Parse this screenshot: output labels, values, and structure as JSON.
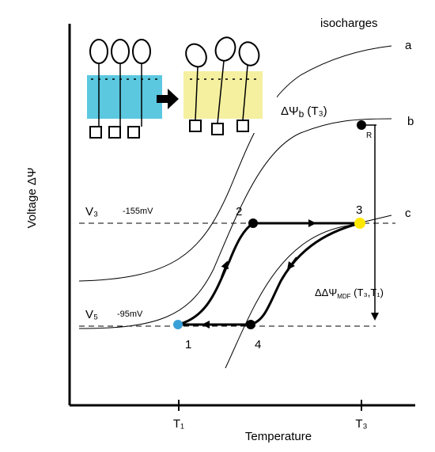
{
  "legend_title": "isocharges",
  "curves": {
    "a": "a",
    "b": "b",
    "c": "c"
  },
  "axes": {
    "y_label": "Voltage ΔΨ",
    "x_label": "Temperature",
    "x_ticks": [
      "T₁",
      "T₃"
    ]
  },
  "levels": [
    {
      "name": "V₃",
      "value": "-155mV"
    },
    {
      "name": "V₅",
      "value": "-95mV"
    }
  ],
  "points": [
    "1",
    "2",
    "3",
    "4",
    "R"
  ],
  "annotations": {
    "delta_psi_b": {
      "main": "ΔΨ",
      "sub": "b",
      "rest": " (T₃)"
    },
    "delta_delta_psi": {
      "main": "ΔΔΨ",
      "sub": "MDF",
      "rest": " (T₃,T₁)"
    }
  }
}
